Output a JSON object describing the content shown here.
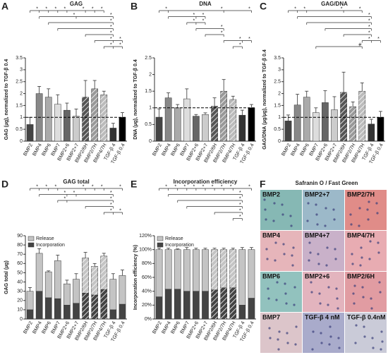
{
  "chart_data": [
    {
      "type": "bar",
      "panel": "A",
      "title": "GAG",
      "ylabel": "GAG (µg), normalized to TGF-β 0.4",
      "categories": [
        "BMP2",
        "BMP4",
        "BMP6",
        "BMP7",
        "BMP2+6",
        "BMP2+7",
        "BMP2/6H",
        "BMP2/7H",
        "BMP4/7H",
        "TGF-β 4",
        "TGF-β 0.4"
      ],
      "values": [
        0.7,
        2.0,
        1.85,
        1.55,
        1.3,
        1.05,
        1.85,
        2.2,
        1.95,
        0.55,
        1.0
      ],
      "errors": [
        0.3,
        0.3,
        0.35,
        0.4,
        0.3,
        0.3,
        0.7,
        0.35,
        0.15,
        0.2,
        0.2
      ],
      "colors": [
        "#444444",
        "#888888",
        "#aaaaaa",
        "#dddddd",
        "#666666",
        "#cccccc",
        "#555555",
        "#999999",
        "#bbbbbb",
        "#333333",
        "#000000"
      ],
      "hatched": [
        false,
        false,
        false,
        false,
        false,
        false,
        true,
        true,
        true,
        false,
        false
      ],
      "ylim": [
        0,
        3.5
      ],
      "yticks": [
        0,
        0.5,
        1,
        1.5,
        2,
        2.5,
        3,
        3.5
      ],
      "reference_line": 1,
      "brackets": [
        {
          "from": 0,
          "to": [
            1,
            2,
            3,
            4,
            6,
            7,
            8
          ],
          "label": "*"
        },
        {
          "from": 1,
          "to": [
            5,
            9
          ],
          "label": "*"
        },
        {
          "from": 2,
          "to": [
            9
          ],
          "label": "*"
        },
        {
          "from": 3,
          "to": [
            9
          ],
          "label": "*"
        },
        {
          "from": 6,
          "to": [
            9
          ],
          "label": "*"
        },
        {
          "from": 7,
          "to": [
            9,
            10
          ],
          "label": "*"
        },
        {
          "from": 8,
          "to": [
            9,
            10
          ],
          "label": "*"
        }
      ]
    },
    {
      "type": "bar",
      "panel": "B",
      "title": "DNA",
      "ylabel": "DNA (µg), normalized to TGF-β 0.4",
      "categories": [
        "BMP2",
        "BMP4",
        "BMP6",
        "BMP7",
        "BMP2+6",
        "BMP2+7",
        "BMP2/6H",
        "BMP2/7H",
        "BMP4/7H",
        "TGF-β 4",
        "TGF-β 0.4"
      ],
      "values": [
        0.72,
        1.3,
        1.0,
        1.27,
        0.75,
        0.8,
        1.05,
        1.5,
        1.25,
        0.78,
        1.0
      ],
      "errors": [
        0.25,
        0.15,
        0.1,
        0.3,
        0.05,
        0.05,
        0.25,
        0.35,
        0.1,
        0.15,
        0.1
      ],
      "colors": [
        "#444444",
        "#888888",
        "#aaaaaa",
        "#dddddd",
        "#666666",
        "#cccccc",
        "#555555",
        "#999999",
        "#bbbbbb",
        "#333333",
        "#000000"
      ],
      "hatched": [
        false,
        false,
        false,
        false,
        false,
        false,
        true,
        true,
        true,
        false,
        false
      ],
      "ylim": [
        0,
        2.5
      ],
      "yticks": [
        0,
        0.5,
        1,
        1.5,
        2,
        2.5
      ],
      "reference_line": 1,
      "brackets": [
        {
          "from": 0,
          "to": [
            1,
            7,
            10
          ],
          "label": "*"
        },
        {
          "from": 1,
          "to": [
            4,
            5
          ],
          "label": "*"
        },
        {
          "from": 3,
          "to": [
            4,
            5
          ],
          "label": "*"
        },
        {
          "from": 4,
          "to": [
            7
          ],
          "label": "*"
        },
        {
          "from": 5,
          "to": [
            7
          ],
          "label": "*"
        },
        {
          "from": 7,
          "to": [
            9,
            10
          ],
          "label": "*"
        },
        {
          "from": 8,
          "to": [
            9
          ],
          "label": "*"
        }
      ]
    },
    {
      "type": "bar",
      "panel": "C",
      "title": "GAG/DNA",
      "ylabel": "GAG/DNA (µg/µg), normalized to TGF-β 0.4",
      "categories": [
        "BMP2",
        "BMP4",
        "BMP6",
        "BMP7",
        "BMP2+6",
        "BMP2+7",
        "BMP2/6H",
        "BMP2/7H",
        "BMP4/7H",
        "TGF-β 4",
        "TGF-β 0.4"
      ],
      "values": [
        0.85,
        1.52,
        1.85,
        1.2,
        1.62,
        1.32,
        2.05,
        1.45,
        2.1,
        0.72,
        1.0
      ],
      "errors": [
        0.25,
        0.45,
        0.25,
        0.2,
        0.5,
        0.55,
        0.85,
        0.2,
        0.35,
        0.2,
        0.25
      ],
      "colors": [
        "#444444",
        "#888888",
        "#aaaaaa",
        "#dddddd",
        "#666666",
        "#cccccc",
        "#555555",
        "#999999",
        "#bbbbbb",
        "#333333",
        "#000000"
      ],
      "hatched": [
        false,
        false,
        false,
        false,
        false,
        false,
        true,
        true,
        true,
        false,
        false
      ],
      "ylim": [
        0,
        3.5
      ],
      "yticks": [
        0,
        0.5,
        1,
        1.5,
        2,
        2.5,
        3,
        3.5
      ],
      "reference_line": 1,
      "brackets": [
        {
          "from": 0,
          "to": [
            1,
            2,
            6,
            8
          ],
          "label": "*"
        },
        {
          "from": 1,
          "to": [
            9
          ],
          "label": "*"
        },
        {
          "from": 2,
          "to": [
            9
          ],
          "label": "*"
        },
        {
          "from": 4,
          "to": [
            9
          ],
          "label": "*"
        },
        {
          "from": 6,
          "to": [
            9
          ],
          "label": "*"
        },
        {
          "from": 8,
          "to": [
            9,
            10
          ],
          "label": "*"
        },
        {
          "from": 3,
          "to": [
            8
          ],
          "label": "#"
        }
      ]
    },
    {
      "type": "stacked_bar",
      "panel": "D",
      "title": "GAG total",
      "ylabel": "GAG total (µg)",
      "categories": [
        "BMP2",
        "BMP4",
        "BMP6",
        "BMP7",
        "BMP2+6",
        "BMP2+7",
        "BMP2/6H",
        "BMP2/7H",
        "BMP4/7H",
        "TGF-β 4",
        "TGF-β 0.4"
      ],
      "series": [
        {
          "name": "Incorporation",
          "color": "#444444",
          "values": [
            10,
            30,
            23,
            22,
            15,
            17,
            28,
            26,
            32,
            10,
            16
          ],
          "errors": [
            3,
            4,
            2,
            3,
            3,
            3,
            4,
            3,
            3,
            2,
            4
          ]
        },
        {
          "name": "Release",
          "color": "#c4c4c4",
          "values": [
            20,
            41,
            28,
            41,
            23,
            26,
            38,
            31,
            36,
            33,
            31
          ],
          "errors": [
            4,
            5,
            1,
            6,
            4,
            6,
            6,
            3,
            3,
            6,
            6
          ]
        }
      ],
      "hatched": [
        false,
        false,
        false,
        false,
        false,
        false,
        true,
        true,
        true,
        false,
        false
      ],
      "ylim": [
        0,
        90
      ],
      "yticks": [
        0,
        10,
        20,
        30,
        40,
        50,
        60,
        70,
        80,
        90
      ],
      "brackets": [
        {
          "from": 0,
          "to": [
            1,
            2,
            3,
            6,
            7,
            8,
            10
          ],
          "label": "*"
        },
        {
          "from": 1,
          "to": [
            4,
            5,
            9
          ],
          "label": "*"
        },
        {
          "from": 3,
          "to": [
            4,
            9
          ],
          "label": "*"
        },
        {
          "from": 6,
          "to": [
            9
          ],
          "label": "*"
        },
        {
          "from": 8,
          "to": [
            9,
            10
          ],
          "label": "*"
        }
      ]
    },
    {
      "type": "stacked_bar",
      "panel": "E",
      "title": "Incorporation efficiency",
      "ylabel": "Incorporation efficiency (%)",
      "categories": [
        "BMP2",
        "BMP4",
        "BMP6",
        "BMP7",
        "BMP2+6",
        "BMP2+7",
        "BMP2/6H",
        "BMP2/7H",
        "BMP4/7H",
        "TGF-β 4",
        "TGF-β 0.4"
      ],
      "series": [
        {
          "name": "Incorporation",
          "color": "#444444",
          "values": [
            32,
            43,
            43,
            40,
            40,
            40,
            42,
            45,
            45,
            20,
            30
          ],
          "errors": [
            3,
            2,
            2,
            5,
            3,
            4,
            3,
            2,
            3,
            3,
            4
          ]
        },
        {
          "name": "Release",
          "color": "#c4c4c4",
          "values": [
            68,
            57,
            57,
            60,
            60,
            60,
            58,
            55,
            55,
            80,
            70
          ],
          "errors": [
            2,
            2,
            1,
            3,
            2,
            2,
            2,
            2,
            2,
            3,
            3
          ]
        }
      ],
      "hatched": [
        false,
        false,
        false,
        false,
        false,
        false,
        true,
        true,
        true,
        false,
        false
      ],
      "ylim": [
        0,
        120
      ],
      "yticks": [
        {
          "value": 0,
          "label": "0%"
        },
        {
          "value": 20,
          "label": "20%"
        },
        {
          "value": 40,
          "label": "40%"
        },
        {
          "value": 60,
          "label": "60%"
        },
        {
          "value": 80,
          "label": "80%"
        },
        {
          "value": 100,
          "label": "100%"
        },
        {
          "value": 120,
          "label": "120%"
        }
      ],
      "brackets": [
        {
          "from": 0,
          "to": [
            1,
            2,
            3,
            4,
            5,
            6,
            7,
            8,
            10
          ],
          "label": "*"
        },
        {
          "from": 1,
          "to": [
            9
          ],
          "label": "*"
        },
        {
          "from": 2,
          "to": [
            9
          ],
          "label": "*"
        },
        {
          "from": 3,
          "to": [
            9
          ],
          "label": "*"
        },
        {
          "from": 6,
          "to": [
            9
          ],
          "label": "*"
        },
        {
          "from": 8,
          "to": [
            9
          ],
          "label": "*"
        }
      ]
    }
  ],
  "histology": {
    "panel": "F",
    "title": "Safranin O / Fast Green",
    "tiles": [
      {
        "label": "BMP2",
        "color": "#86b8b4"
      },
      {
        "label": "BMP2+7",
        "color": "#9cb9c9"
      },
      {
        "label": "BMP2/7H",
        "color": "#e08c88"
      },
      {
        "label": "BMP4",
        "color": "#e6b5ba"
      },
      {
        "label": "BMP4+7",
        "color": "#c9b1c9"
      },
      {
        "label": "BMP4/7H",
        "color": "#e8acb2"
      },
      {
        "label": "BMP6",
        "color": "#92c2be"
      },
      {
        "label": "BMP2+6",
        "color": "#e3b4be"
      },
      {
        "label": "BMP2/6H",
        "color": "#e19ca2"
      },
      {
        "label": "BMP7",
        "color": "#dcc5ca"
      },
      {
        "label": "TGF-β 4 nM",
        "color": "#a9abcb"
      },
      {
        "label": "TGF-β 0.4nM",
        "color": "#cacbd8"
      }
    ]
  }
}
